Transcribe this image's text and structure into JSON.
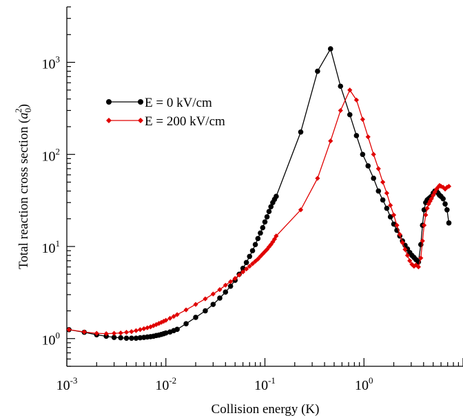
{
  "chart_data": {
    "type": "line",
    "xscale": "log",
    "yscale": "log",
    "xlim": [
      0.001,
      10
    ],
    "ylim": [
      0.5,
      4000
    ],
    "xlabel": "Collision energy (K)",
    "ylabel": {
      "prefix": "Total reaction cross section (",
      "symbol": "a",
      "sub": "0",
      "sup": "2",
      "suffix": ")"
    },
    "x_ticks": [
      {
        "base": "10",
        "exp": "-3",
        "value": 0.001
      },
      {
        "base": "10",
        "exp": "-2",
        "value": 0.01
      },
      {
        "base": "10",
        "exp": "-1",
        "value": 0.1
      },
      {
        "base": "10",
        "exp": "0",
        "value": 1
      }
    ],
    "y_ticks": [
      {
        "base": "10",
        "exp": "0",
        "value": 1
      },
      {
        "base": "10",
        "exp": "1",
        "value": 10
      },
      {
        "base": "10",
        "exp": "2",
        "value": 100
      },
      {
        "base": "10",
        "exp": "3",
        "value": 1000
      }
    ],
    "legend_position": "upper-left",
    "grid": false,
    "series": [
      {
        "name": "E = 0 kV/cm",
        "color": "#000000",
        "marker": "circle",
        "x": [
          0.00105,
          0.0015,
          0.002,
          0.0025,
          0.003,
          0.0035,
          0.004,
          0.0045,
          0.005,
          0.0055,
          0.006,
          0.0065,
          0.007,
          0.0075,
          0.008,
          0.0085,
          0.009,
          0.0095,
          0.01,
          0.011,
          0.012,
          0.013,
          0.016,
          0.02,
          0.025,
          0.03,
          0.035,
          0.04,
          0.045,
          0.05,
          0.055,
          0.06,
          0.065,
          0.07,
          0.075,
          0.08,
          0.085,
          0.09,
          0.095,
          0.1,
          0.105,
          0.11,
          0.115,
          0.12,
          0.125,
          0.13,
          0.23,
          0.34,
          0.46,
          0.58,
          0.72,
          0.84,
          0.97,
          1.1,
          1.25,
          1.4,
          1.55,
          1.7,
          1.85,
          2.0,
          2.15,
          2.3,
          2.45,
          2.6,
          2.75,
          2.9,
          3.05,
          3.2,
          3.35,
          3.55,
          3.75,
          3.9,
          4.05,
          4.2,
          4.35,
          4.5,
          4.65,
          4.8,
          5.0,
          5.2,
          5.4,
          5.6,
          5.8,
          6.0,
          6.3,
          6.6,
          6.9,
          7.2
        ],
        "y": [
          1.25,
          1.17,
          1.1,
          1.06,
          1.03,
          1.02,
          1.01,
          1.01,
          1.01,
          1.02,
          1.03,
          1.04,
          1.05,
          1.06,
          1.08,
          1.09,
          1.11,
          1.13,
          1.15,
          1.18,
          1.22,
          1.26,
          1.45,
          1.7,
          2.0,
          2.35,
          2.75,
          3.2,
          3.7,
          4.3,
          5.0,
          5.8,
          6.7,
          7.8,
          9.0,
          10.5,
          12.2,
          14.0,
          16.0,
          18.5,
          21.0,
          24.0,
          27.0,
          30.0,
          32.5,
          35.0,
          175,
          800,
          1400,
          550,
          270,
          160,
          100,
          75,
          55,
          40,
          32,
          26,
          21,
          17.5,
          15,
          13,
          11.5,
          10.3,
          9.4,
          8.6,
          8.0,
          7.6,
          7.2,
          6.8,
          10.5,
          17,
          25,
          30,
          32,
          33,
          34,
          35,
          38,
          40,
          40,
          38,
          36,
          35,
          33,
          29,
          25,
          18
        ]
      },
      {
        "name": "E = 200 kV/cm",
        "color": "#e00000",
        "marker": "diamond",
        "x": [
          0.00105,
          0.0015,
          0.002,
          0.0025,
          0.003,
          0.0035,
          0.004,
          0.0045,
          0.005,
          0.0055,
          0.006,
          0.0065,
          0.007,
          0.0075,
          0.008,
          0.0085,
          0.009,
          0.0095,
          0.01,
          0.011,
          0.012,
          0.013,
          0.016,
          0.02,
          0.025,
          0.03,
          0.035,
          0.04,
          0.045,
          0.05,
          0.055,
          0.06,
          0.065,
          0.07,
          0.075,
          0.08,
          0.085,
          0.09,
          0.095,
          0.1,
          0.105,
          0.11,
          0.115,
          0.12,
          0.125,
          0.13,
          0.23,
          0.34,
          0.46,
          0.58,
          0.72,
          0.84,
          0.97,
          1.1,
          1.25,
          1.4,
          1.55,
          1.7,
          1.85,
          2.0,
          2.15,
          2.3,
          2.45,
          2.6,
          2.75,
          2.9,
          3.05,
          3.2,
          3.35,
          3.55,
          3.75,
          3.9,
          4.05,
          4.2,
          4.35,
          4.5,
          4.65,
          4.8,
          5.0,
          5.2,
          5.4,
          5.6,
          5.8,
          6.0,
          6.3,
          6.6,
          6.9,
          7.2
        ],
        "y": [
          1.25,
          1.18,
          1.14,
          1.13,
          1.14,
          1.15,
          1.17,
          1.19,
          1.22,
          1.25,
          1.28,
          1.31,
          1.34,
          1.38,
          1.42,
          1.46,
          1.5,
          1.54,
          1.58,
          1.66,
          1.74,
          1.82,
          2.05,
          2.35,
          2.7,
          3.05,
          3.4,
          3.8,
          4.15,
          4.5,
          4.9,
          5.3,
          5.7,
          6.1,
          6.5,
          6.9,
          7.3,
          7.8,
          8.3,
          8.8,
          9.3,
          9.9,
          10.5,
          11.2,
          12.0,
          13.0,
          25,
          55,
          140,
          300,
          500,
          390,
          240,
          155,
          100,
          70,
          50,
          38,
          28,
          22,
          17,
          13.5,
          11,
          9.3,
          8.0,
          7.0,
          6.4,
          6.1,
          6.3,
          6.0,
          7.5,
          11.5,
          17,
          22,
          26,
          29,
          31,
          33,
          36,
          39,
          42,
          44,
          46,
          45,
          44,
          42,
          44,
          45
        ]
      }
    ]
  }
}
